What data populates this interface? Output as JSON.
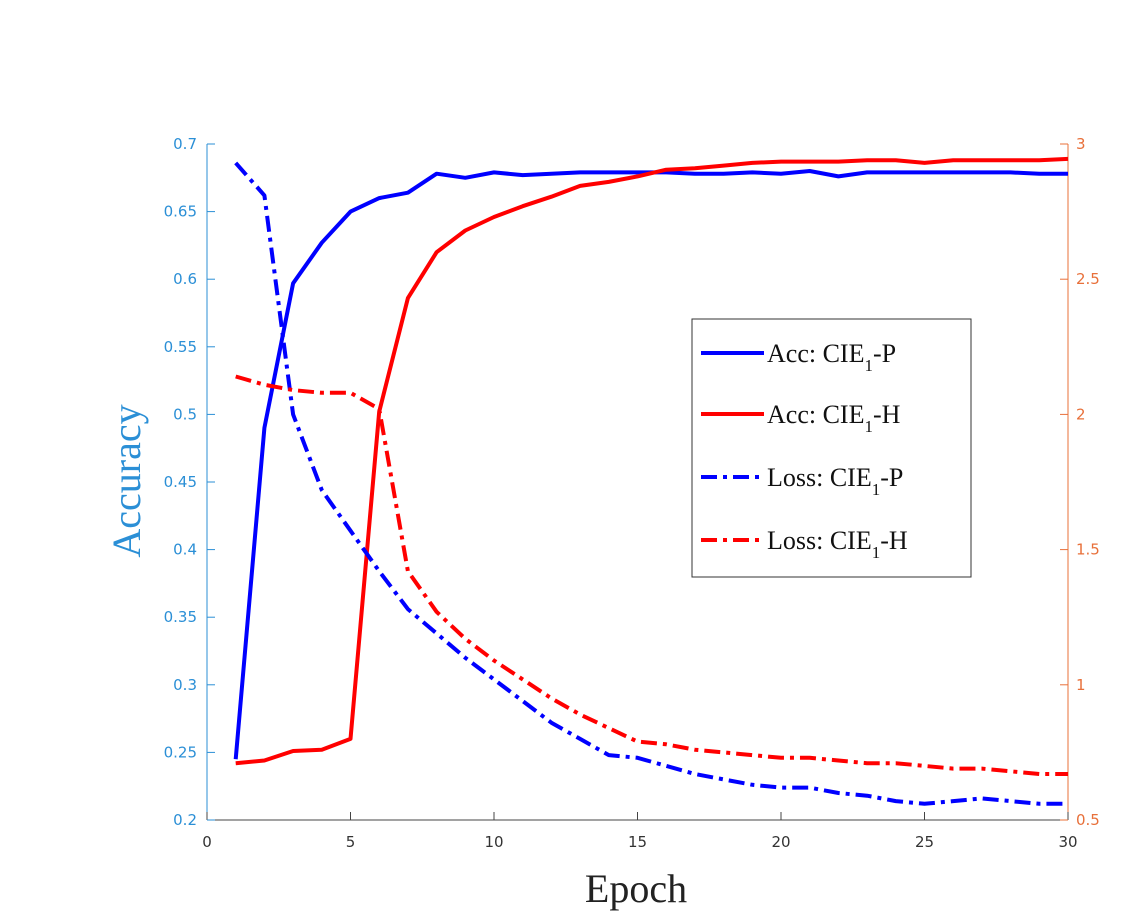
{
  "chart_data": {
    "type": "line",
    "xlabel": "Epoch",
    "ylabel_left": "Accuracy",
    "ylabel_right": "",
    "xlim": [
      0,
      30
    ],
    "ylim_left": [
      0.2,
      0.7
    ],
    "ylim_right": [
      0.5,
      3
    ],
    "x_ticks": [
      "0",
      "5",
      "10",
      "15",
      "20",
      "25",
      "30"
    ],
    "y_left_ticks": [
      "0.2",
      "0.25",
      "0.3",
      "0.35",
      "0.4",
      "0.45",
      "0.5",
      "0.55",
      "0.6",
      "0.65",
      "0.7"
    ],
    "y_right_ticks": [
      "0.5",
      "1",
      "1.5",
      "2",
      "2.5",
      "3"
    ],
    "grid": false,
    "legend_position": "center-right",
    "legend": [
      {
        "prefix": "Acc: CIE",
        "sub": "1",
        "suffix": "-P"
      },
      {
        "prefix": "Acc: CIE",
        "sub": "1",
        "suffix": "-H"
      },
      {
        "prefix": "Loss: CIE",
        "sub": "1",
        "suffix": "-P"
      },
      {
        "prefix": "Loss: CIE",
        "sub": "1",
        "suffix": "-H"
      }
    ],
    "colors": {
      "left_axis": "#2b8fd6",
      "right_axis": "#e8703a",
      "blue": "#0000ff",
      "red": "#ff0000"
    },
    "x": [
      1,
      2,
      3,
      4,
      5,
      6,
      7,
      8,
      9,
      10,
      11,
      12,
      13,
      14,
      15,
      16,
      17,
      18,
      19,
      20,
      21,
      22,
      23,
      24,
      25,
      26,
      27,
      28,
      29,
      30
    ],
    "series": [
      {
        "axis": "left",
        "color": "#0000ff",
        "style": "solid",
        "values": [
          0.245,
          0.49,
          0.597,
          0.627,
          0.65,
          0.66,
          0.664,
          0.678,
          0.675,
          0.679,
          0.677,
          0.678,
          0.679,
          0.679,
          0.679,
          0.679,
          0.678,
          0.678,
          0.679,
          0.678,
          0.68,
          0.676,
          0.679,
          0.679,
          0.679,
          0.679,
          0.679,
          0.679,
          0.678,
          0.678
        ]
      },
      {
        "axis": "left",
        "color": "#ff0000",
        "style": "solid",
        "values": [
          0.242,
          0.244,
          0.251,
          0.252,
          0.26,
          0.502,
          0.586,
          0.62,
          0.636,
          0.646,
          0.654,
          0.661,
          0.669,
          0.672,
          0.676,
          0.681,
          0.682,
          0.684,
          0.686,
          0.687,
          0.687,
          0.687,
          0.688,
          0.688,
          0.686,
          0.688,
          0.688,
          0.688,
          0.688,
          0.689
        ]
      },
      {
        "axis": "right",
        "color": "#0000ff",
        "style": "dashdot",
        "values": [
          2.93,
          2.81,
          2.0,
          1.72,
          1.57,
          1.42,
          1.28,
          1.19,
          1.1,
          1.02,
          0.94,
          0.86,
          0.8,
          0.74,
          0.73,
          0.7,
          0.67,
          0.65,
          0.63,
          0.62,
          0.62,
          0.6,
          0.59,
          0.57,
          0.56,
          0.57,
          0.58,
          0.57,
          0.56,
          0.56
        ]
      },
      {
        "axis": "right",
        "color": "#ff0000",
        "style": "dashdot",
        "values": [
          2.14,
          2.11,
          2.09,
          2.08,
          2.08,
          2.02,
          1.42,
          1.27,
          1.17,
          1.09,
          1.02,
          0.95,
          0.89,
          0.84,
          0.79,
          0.78,
          0.76,
          0.75,
          0.74,
          0.73,
          0.73,
          0.72,
          0.71,
          0.71,
          0.7,
          0.69,
          0.69,
          0.68,
          0.67,
          0.67
        ]
      }
    ]
  }
}
